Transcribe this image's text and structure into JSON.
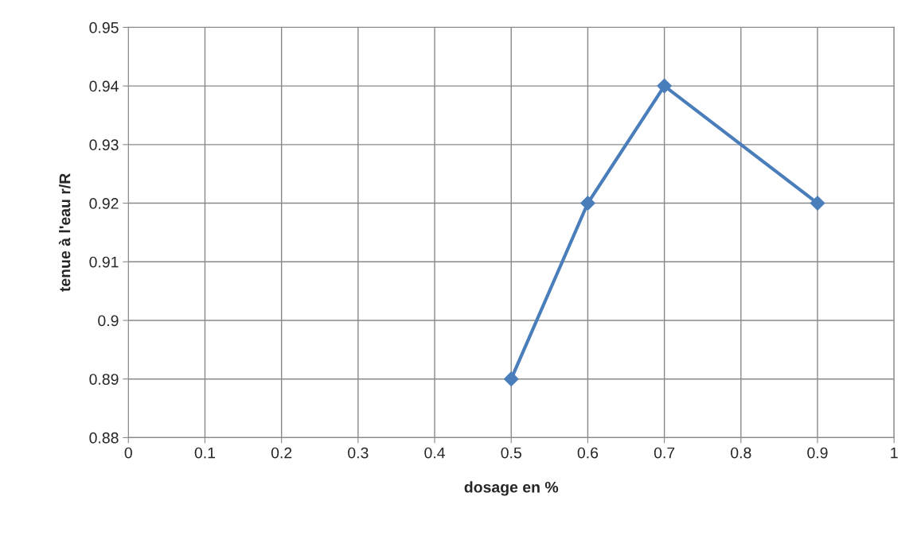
{
  "chart_data": {
    "type": "line",
    "xlabel": "dosage en %",
    "ylabel": "tenue à l'eau r/R",
    "x": [
      0.5,
      0.6,
      0.7,
      0.9
    ],
    "series": [
      {
        "color": "#4a7ebb",
        "values": [
          0.89,
          0.92,
          0.94,
          0.92
        ]
      }
    ],
    "xlim": [
      0,
      1
    ],
    "xticks": [
      0,
      0.1,
      0.2,
      0.3,
      0.4,
      0.5,
      0.6,
      0.7,
      0.8,
      0.9,
      1
    ],
    "ylim": [
      0.88,
      0.95
    ],
    "yticks": [
      0.88,
      0.89,
      0.9,
      0.91,
      0.92,
      0.93,
      0.94,
      0.95
    ],
    "grid": true,
    "marker": "diamond",
    "line_style": "solid",
    "legend": false
  }
}
